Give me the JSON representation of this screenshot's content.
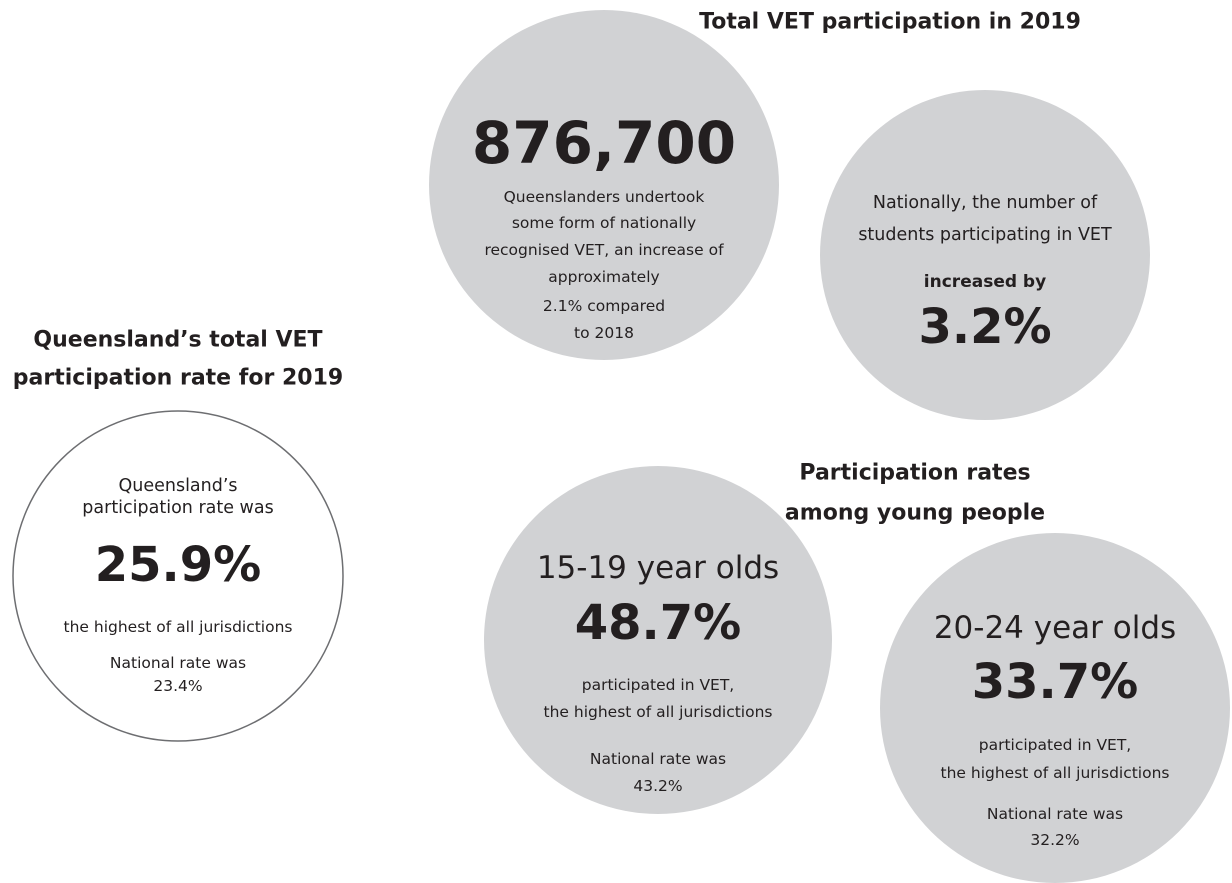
{
  "title": "Total VET participation in 2019",
  "total": {
    "number": "876,700",
    "lines": [
      "Queenslanders undertook",
      "some form of nationally",
      "recognised VET, an increase of",
      "approximately",
      "2.1% compared",
      "to 2018"
    ]
  },
  "national": {
    "lines": [
      "Nationally, the number of",
      "students participating in VET"
    ],
    "emphasis": "increased by",
    "number": "3.2%"
  },
  "rate": {
    "heading": [
      "Queensland’s total VET",
      "participation rate for 2019"
    ],
    "lines": [
      "Queensland’s",
      "participation rate was"
    ],
    "number": "25.9%",
    "note": "the highest of all jurisdictions",
    "national": [
      "National rate was",
      "23.4%"
    ]
  },
  "young": {
    "heading": [
      "Participation rates",
      "among young people"
    ],
    "groups": [
      {
        "label": "15-19 year olds",
        "number": "48.7%",
        "lines": [
          "participated in VET,",
          "the highest of all jurisdictions"
        ],
        "national": [
          "National rate was",
          "43.2%"
        ]
      },
      {
        "label": "20-24 year olds",
        "number": "33.7%",
        "lines": [
          "participated in VET,",
          "the highest of all jurisdictions"
        ],
        "national": [
          "National rate was",
          "32.2%"
        ]
      }
    ]
  }
}
